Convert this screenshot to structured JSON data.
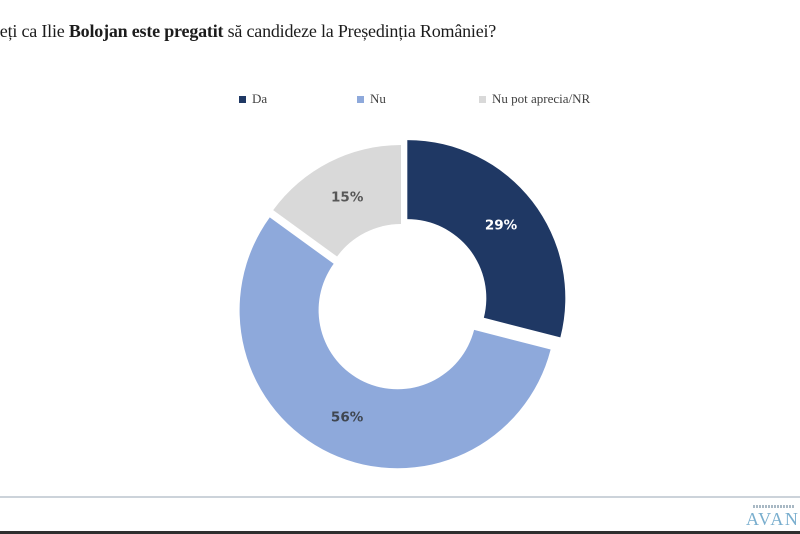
{
  "title": {
    "prefix": "deți ca Ilie ",
    "bold": "Bolojan este pregatit",
    "suffix": " să candideze la Președinția României?"
  },
  "chart_data": {
    "type": "pie",
    "subtype": "donut",
    "title": "deți ca Ilie Bolojan este pregatit să candideze la Președinția României?",
    "unit": "%",
    "start_angle_deg": 0,
    "direction": "clockwise",
    "legend_position": "top",
    "series": [
      {
        "name": "Da",
        "value": 29,
        "color": "#1F3864",
        "label": "29%",
        "label_color": "#FFFFFF"
      },
      {
        "name": "Nu",
        "value": 56,
        "color": "#8EA9DB",
        "label": "56%",
        "label_color": "#3F4650"
      },
      {
        "name": "Nu pot aprecia/NR",
        "value": 15,
        "color": "#D9D9D9",
        "label": "15%",
        "label_color": "#575757"
      }
    ]
  },
  "footer": {
    "logo_text": "AVAN"
  }
}
